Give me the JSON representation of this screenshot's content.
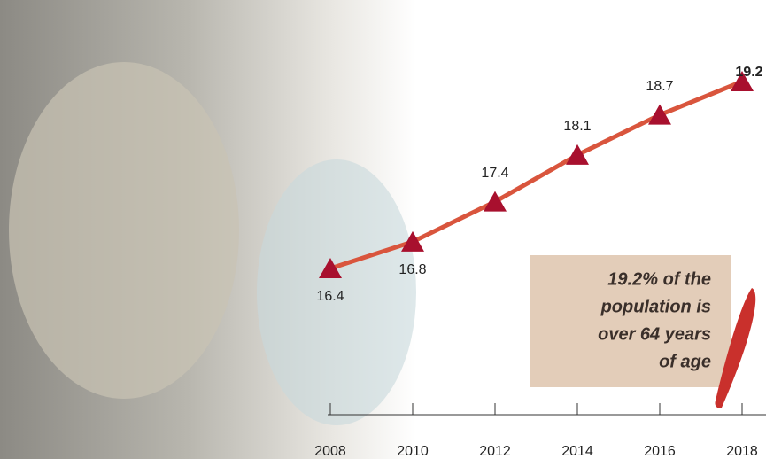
{
  "chart_data": {
    "type": "line",
    "x": [
      2008,
      2010,
      2012,
      2014,
      2016,
      2018
    ],
    "values": [
      16.4,
      16.8,
      17.4,
      18.1,
      18.7,
      19.2
    ],
    "color": "#d9553d",
    "marker_color": "#a8102e",
    "xlim": [
      2008,
      2018
    ],
    "xticks": [
      2008,
      2010,
      2012,
      2014,
      2016,
      2018
    ],
    "annotation": [
      "19.2% of the",
      "population is",
      "over 64 years",
      "of age"
    ]
  }
}
